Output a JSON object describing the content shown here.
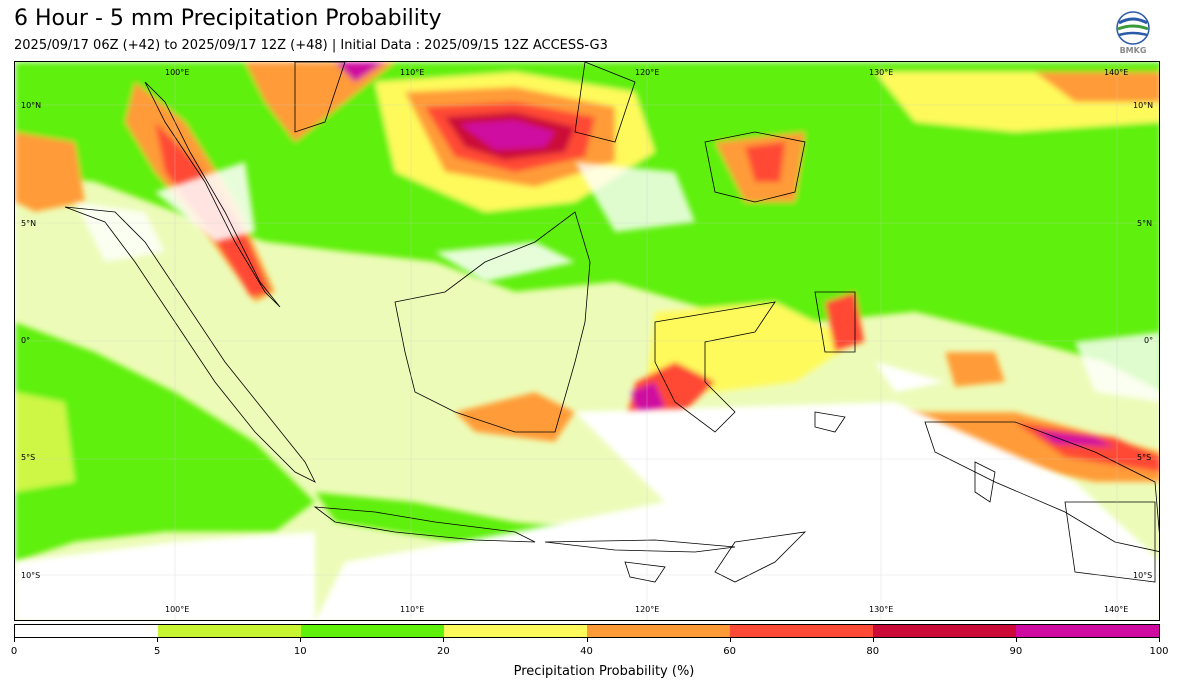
{
  "title": "6 Hour - 5 mm Precipitation Probability",
  "subtitle": "2025/09/17 06Z (+42) to 2025/09/17 12Z (+48) | Initial Data : 2025/09/15 12Z ACCESS-G3",
  "logo": {
    "text": "BMKG",
    "icon": "bmkg-logo"
  },
  "map": {
    "lon_labels": [
      "100°E",
      "110°E",
      "120°E",
      "130°E",
      "140°E"
    ],
    "lat_labels": [
      "10°N",
      "5°N",
      "0°",
      "5°S",
      "10°S"
    ],
    "lon_range": [
      92.5,
      141.5
    ],
    "lat_range": [
      -12,
      12
    ]
  },
  "colorbar": {
    "title": "Precipitation Probability (%)",
    "ticks": [
      "0",
      "5",
      "10",
      "20",
      "40",
      "60",
      "80",
      "90",
      "100"
    ],
    "colors": [
      "#ffffff",
      "#c8f531",
      "#5ff00b",
      "#fefa5c",
      "#ff9b37",
      "#ff4a35",
      "#cc0a38",
      "#cf0aa0"
    ]
  }
}
